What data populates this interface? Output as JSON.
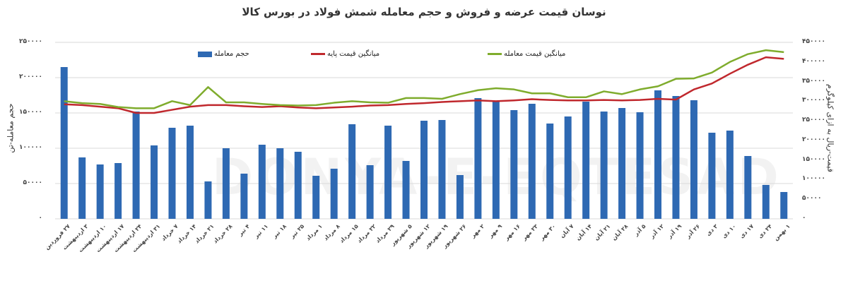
{
  "chart_data": {
    "type": "bar",
    "title": "نوسان قیمت عرضه و فروش و حجم معامله شمش فولاد در بورس کالا",
    "ylabel": "حجم معامله-تن",
    "y2label": "قیمت-ریال به ازای کیلوگرم",
    "ylim": [
      0,
      250000
    ],
    "y2lim": [
      0,
      450000
    ],
    "yticks": [
      "۰",
      "۵۰۰۰۰",
      "۱۰۰۰۰۰",
      "۱۵۰۰۰۰",
      "۲۰۰۰۰۰",
      "۲۵۰۰۰۰"
    ],
    "y2ticks": [
      "۰",
      "۵۰۰۰۰",
      "۱۰۰۰۰۰",
      "۱۵۰۰۰۰",
      "۲۰۰۰۰۰",
      "۲۵۰۰۰۰",
      "۳۰۰۰۰۰",
      "۳۵۰۰۰۰",
      "۴۰۰۰۰۰",
      "۴۵۰۰۰۰"
    ],
    "grid": true,
    "legend_position": "top",
    "categories": [
      "۲۷ فروردین",
      "۳ اردیبهشت",
      "۱۰ اردیبهشت",
      "۱۷ اردیبهشت",
      "۲۴ اردیبهشت",
      "۳۱ اردیبهشت",
      "۷ خرداد",
      "۱۴ خرداد",
      "۲۱ خرداد",
      "۲۸ خرداد",
      "۴ تیر",
      "۱۱ تیر",
      "۱۸ تیر",
      "۲۵ تیر",
      "۱ مرداد",
      "۸ مرداد",
      "۱۵ مرداد",
      "۲۲ مرداد",
      "۲۹ مرداد",
      "۵ شهریور",
      "۱۲ شهریور",
      "۱۹ شهریور",
      "۲۶ شهریور",
      "۲ مهر",
      "۹ مهر",
      "۱۶ مهر",
      "۲۳ مهر",
      "۳۰ مهر",
      "۷ آبان",
      "۱۴ آبان",
      "۲۱ آبان",
      "۲۸ آبان",
      "۵ آذر",
      "۱۲ آذر",
      "۱۹ آذر",
      "۲۶ آذر",
      "۳ دی",
      "۱۰ دی",
      "۱۷ دی",
      "۲۴ دی",
      "۱ بهمن"
    ],
    "series": [
      {
        "name": "حجم معامله",
        "type": "bar",
        "axis": "left",
        "color": "#2e69b3",
        "values": [
          215000,
          87000,
          77000,
          79000,
          152000,
          104000,
          129000,
          132000,
          53000,
          100000,
          64000,
          105000,
          100000,
          95000,
          61000,
          71000,
          134000,
          76000,
          132000,
          82000,
          139000,
          140000,
          62000,
          171000,
          167000,
          154000,
          163000,
          135000,
          145000,
          166000,
          152000,
          157000,
          151000,
          182000,
          174000,
          168000,
          122000,
          125000,
          89000,
          48000,
          38000
        ]
      },
      {
        "name": "میانگین قیمت پایه",
        "type": "line",
        "axis": "right",
        "color": "#c0282d",
        "values": [
          292000,
          290000,
          286000,
          282000,
          270000,
          270000,
          278000,
          286000,
          290000,
          290000,
          287000,
          285000,
          287000,
          284000,
          282000,
          284000,
          286000,
          289000,
          290000,
          293000,
          295000,
          298000,
          300000,
          302000,
          300000,
          302000,
          305000,
          303000,
          302000,
          302000,
          303000,
          302000,
          303000,
          306000,
          304000,
          330000,
          345000,
          370000,
          393000,
          412000,
          408000
        ]
      },
      {
        "name": "میانگین قیمت معامله",
        "type": "line",
        "axis": "right",
        "color": "#7fac2d",
        "values": [
          300000,
          295000,
          293000,
          285000,
          282000,
          282000,
          300000,
          290000,
          336000,
          297000,
          297000,
          293000,
          290000,
          289000,
          290000,
          296000,
          300000,
          297000,
          296000,
          308000,
          308000,
          306000,
          318000,
          328000,
          333000,
          330000,
          320000,
          320000,
          310000,
          310000,
          325000,
          318000,
          330000,
          338000,
          357000,
          358000,
          373000,
          400000,
          420000,
          430000,
          425000
        ]
      }
    ]
  },
  "legend": [
    {
      "label": "حجم معامله"
    },
    {
      "label": "میانگین قیمت پایه"
    },
    {
      "label": "میانگین قیمت معامله"
    }
  ],
  "watermark": "DONYA-E-EQTESAD"
}
